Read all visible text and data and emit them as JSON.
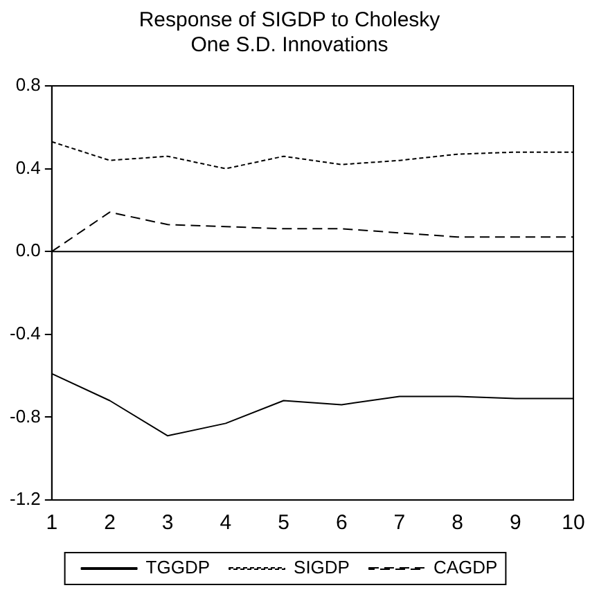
{
  "chart_data": {
    "type": "line",
    "title": "Response of SIGDP to Cholesky\nOne S.D. Innovations",
    "x": [
      1,
      2,
      3,
      4,
      5,
      6,
      7,
      8,
      9,
      10
    ],
    "series": [
      {
        "name": "TGGDP",
        "color": "#000000",
        "line_style": "solid",
        "values": [
          -0.59,
          -0.72,
          -0.89,
          -0.83,
          -0.72,
          -0.74,
          -0.7,
          -0.7,
          -0.71,
          -0.71
        ]
      },
      {
        "name": "SIGDP",
        "color": "#000000",
        "line_style": "dotted",
        "values": [
          0.53,
          0.44,
          0.46,
          0.4,
          0.46,
          0.42,
          0.44,
          0.47,
          0.48,
          0.48
        ]
      },
      {
        "name": "CAGDP",
        "color": "#000000",
        "line_style": "dashed",
        "values": [
          0.0,
          0.19,
          0.13,
          0.12,
          0.11,
          0.11,
          0.09,
          0.07,
          0.07,
          0.07
        ]
      }
    ],
    "xlim": [
      1,
      10
    ],
    "xticks": [
      1,
      2,
      3,
      4,
      5,
      6,
      7,
      8,
      9,
      10
    ],
    "ylim": [
      -1.2,
      0.8
    ],
    "yticks": [
      {
        "value": -1.2,
        "label": "-1.2"
      },
      {
        "value": -0.8,
        "label": "-0.8"
      },
      {
        "value": -0.4,
        "label": "-0.4"
      },
      {
        "value": 0,
        "label": "0.0"
      },
      {
        "value": 0.4,
        "label": "0.4"
      },
      {
        "value": 0.8,
        "label": "0.8"
      }
    ],
    "ref_lines": [
      {
        "axis": "y",
        "value": 0,
        "color": "#000000"
      }
    ],
    "grid": false,
    "legend": "bottom",
    "marker": "none"
  }
}
